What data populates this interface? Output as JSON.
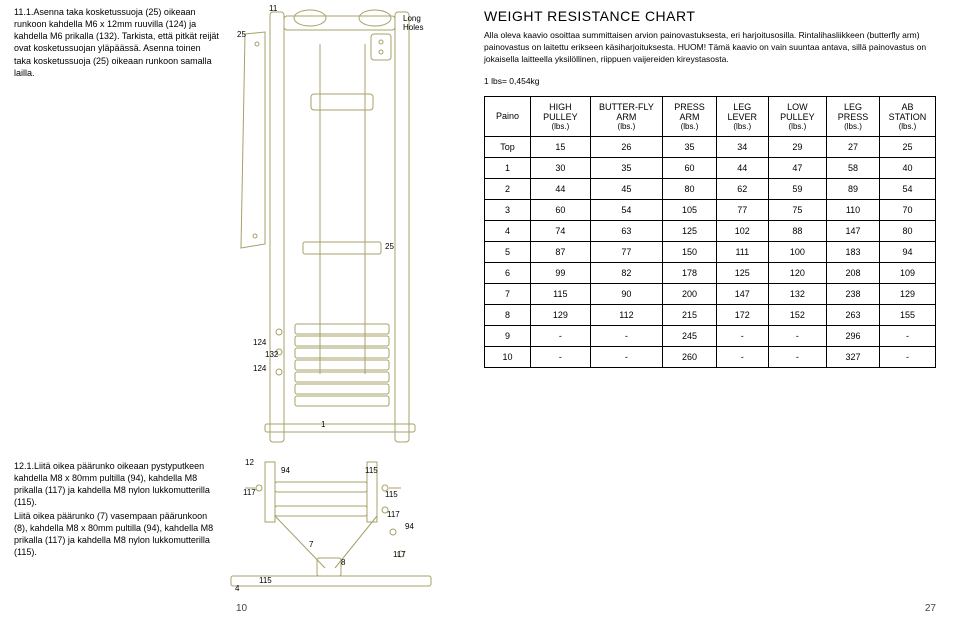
{
  "left": {
    "step11_num": "11.1.",
    "step11": "Asenna taka kosketussuoja (25) oikeaan runkoon kahdella M6 x 12mm ruuvilla (124) ja kahdella M6 prikalla (132). Tarkista, että pitkät reijät ovat kosketussuojan yläpäässä.\nAsenna toinen taka kosketussuoja (25) oikeaan runkoon samalla lailla.",
    "step12_num": "12.1.",
    "step12": "Liitä oikea päärunko oikeaan pystyputkeen kahdella M8 x 80mm pultilla (94), kahdella M8 prikalla (117) ja kahdella M8 nylon lukkomutterilla (115).",
    "step12b": "Liitä oikea päärunko (7) vasempaan päärunkoon (8), kahdella M8 x 80mm pultilla (94), kahdella M8 prikalla (117) ja kahdella M8 nylon lukkomutterilla (115).",
    "page_num_left": "10"
  },
  "diagram1": {
    "labels": {
      "tl": "11",
      "25a": "25",
      "long_holes": "Long\nHoles",
      "25b": "25",
      "124": "124",
      "132": "132",
      "124b": "124",
      "one": "1"
    }
  },
  "diagram2": {
    "labels": {
      "12": "12",
      "94": "94",
      "115a": "115",
      "117a": "117",
      "115b": "115",
      "117b": "117",
      "94b": "94",
      "7": "7",
      "117c": "117",
      "8": "8",
      "115c": "115",
      "4": "4"
    }
  },
  "right": {
    "title": "WEIGHT RESISTANCE CHART",
    "desc": "Alla oleva kaavio osoittaa summittaisen arvion painovastuksesta, eri harjoitusosilla. Rintalihasliikkeen (butterfly arm) painovastus on laitettu erikseen käsiharjoituksesta. HUOM! Tämä kaavio on vain suuntaa antava, sillä painovastus on jokaisella laitteella yksilöllinen, riippuen vaijereiden kireystasosta.",
    "conv": "1 lbs= 0,454kg",
    "page_num_right": "27",
    "table": {
      "columns": [
        {
          "h1": "Paino",
          "h2": ""
        },
        {
          "h1": "HIGH PULLEY",
          "h2": "(lbs.)"
        },
        {
          "h1": "BUTTER-FLY ARM",
          "h2": "(lbs.)"
        },
        {
          "h1": "PRESS ARM",
          "h2": "(lbs.)"
        },
        {
          "h1": "LEG LEVER",
          "h2": "(lbs.)"
        },
        {
          "h1": "LOW PULLEY",
          "h2": "(lbs.)"
        },
        {
          "h1": "LEG PRESS",
          "h2": "(lbs.)"
        },
        {
          "h1": "AB STATION",
          "h2": "(lbs.)"
        }
      ],
      "rows": [
        [
          "Top",
          "15",
          "26",
          "35",
          "34",
          "29",
          "27",
          "25"
        ],
        [
          "1",
          "30",
          "35",
          "60",
          "44",
          "47",
          "58",
          "40"
        ],
        [
          "2",
          "44",
          "45",
          "80",
          "62",
          "59",
          "89",
          "54"
        ],
        [
          "3",
          "60",
          "54",
          "105",
          "77",
          "75",
          "110",
          "70"
        ],
        [
          "4",
          "74",
          "63",
          "125",
          "102",
          "88",
          "147",
          "80"
        ],
        [
          "5",
          "87",
          "77",
          "150",
          "111",
          "100",
          "183",
          "94"
        ],
        [
          "6",
          "99",
          "82",
          "178",
          "125",
          "120",
          "208",
          "109"
        ],
        [
          "7",
          "115",
          "90",
          "200",
          "147",
          "132",
          "238",
          "129"
        ],
        [
          "8",
          "129",
          "112",
          "215",
          "172",
          "152",
          "263",
          "155"
        ],
        [
          "9",
          "-",
          "-",
          "245",
          "-",
          "-",
          "296",
          "-"
        ],
        [
          "10",
          "-",
          "-",
          "260",
          "-",
          "-",
          "327",
          "-"
        ]
      ],
      "border_color": "#000000",
      "font_size": 9,
      "header_font_size": 9
    }
  }
}
